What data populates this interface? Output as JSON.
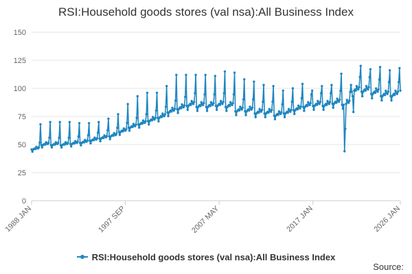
{
  "chart_data": {
    "type": "line",
    "title": "RSI:Household goods stores (val nsa):All Business Index",
    "xlabel": "",
    "ylabel": "",
    "ylim": [
      0,
      150
    ],
    "yticks": [
      0,
      25,
      50,
      75,
      100,
      125,
      150
    ],
    "xrange": [
      "1988 JAN",
      "2026 JAN"
    ],
    "xtick_labels": [
      {
        "label": "1988 JAN",
        "date": "1988-01"
      },
      {
        "label": "1997 SEP",
        "date": "1997-09"
      },
      {
        "label": "2007 MAY",
        "date": "2007-05"
      },
      {
        "label": "2017 JAN",
        "date": "2017-01"
      },
      {
        "label": "2026 JAN",
        "date": "2026-01"
      }
    ],
    "grid": "horizontal",
    "legend_position": "bottom",
    "series": [
      {
        "name": "RSI:Household goods stores (val nsa):All Business Index",
        "color": "#1f86c0",
        "frequency": "monthly",
        "annual_base": [
          {
            "year": 1988,
            "value": 47
          },
          {
            "year": 1989,
            "value": 51
          },
          {
            "year": 1990,
            "value": 51
          },
          {
            "year": 1991,
            "value": 51
          },
          {
            "year": 1992,
            "value": 52
          },
          {
            "year": 1993,
            "value": 53
          },
          {
            "year": 1994,
            "value": 55
          },
          {
            "year": 1995,
            "value": 57
          },
          {
            "year": 1996,
            "value": 59
          },
          {
            "year": 1997,
            "value": 63
          },
          {
            "year": 1998,
            "value": 67
          },
          {
            "year": 1999,
            "value": 70
          },
          {
            "year": 2000,
            "value": 73
          },
          {
            "year": 2001,
            "value": 76
          },
          {
            "year": 2002,
            "value": 81
          },
          {
            "year": 2003,
            "value": 84
          },
          {
            "year": 2004,
            "value": 87
          },
          {
            "year": 2005,
            "value": 86
          },
          {
            "year": 2006,
            "value": 86
          },
          {
            "year": 2007,
            "value": 87
          },
          {
            "year": 2008,
            "value": 86
          },
          {
            "year": 2009,
            "value": 82
          },
          {
            "year": 2010,
            "value": 82
          },
          {
            "year": 2011,
            "value": 80
          },
          {
            "year": 2012,
            "value": 80
          },
          {
            "year": 2013,
            "value": 78
          },
          {
            "year": 2014,
            "value": 80
          },
          {
            "year": 2015,
            "value": 83
          },
          {
            "year": 2016,
            "value": 86
          },
          {
            "year": 2017,
            "value": 87
          },
          {
            "year": 2018,
            "value": 87
          },
          {
            "year": 2019,
            "value": 89
          },
          {
            "year": 2020,
            "value": 88
          },
          {
            "year": 2021,
            "value": 100
          },
          {
            "year": 2022,
            "value": 100
          },
          {
            "year": 2023,
            "value": 98
          },
          {
            "year": 2024,
            "value": 96
          },
          {
            "year": 2025,
            "value": 96
          },
          {
            "year": 2026,
            "value": 97
          }
        ],
        "annual_december_peak": [
          {
            "year": 1988,
            "value": 68
          },
          {
            "year": 1989,
            "value": 70
          },
          {
            "year": 1990,
            "value": 70
          },
          {
            "year": 1991,
            "value": 70
          },
          {
            "year": 1992,
            "value": 69
          },
          {
            "year": 1993,
            "value": 69
          },
          {
            "year": 1994,
            "value": 70
          },
          {
            "year": 1995,
            "value": 73
          },
          {
            "year": 1996,
            "value": 77
          },
          {
            "year": 1997,
            "value": 86
          },
          {
            "year": 1998,
            "value": 93
          },
          {
            "year": 1999,
            "value": 96
          },
          {
            "year": 2000,
            "value": 96
          },
          {
            "year": 2001,
            "value": 102
          },
          {
            "year": 2002,
            "value": 112
          },
          {
            "year": 2003,
            "value": 112
          },
          {
            "year": 2004,
            "value": 112
          },
          {
            "year": 2005,
            "value": 112
          },
          {
            "year": 2006,
            "value": 111
          },
          {
            "year": 2007,
            "value": 115
          },
          {
            "year": 2008,
            "value": 114
          },
          {
            "year": 2009,
            "value": 108
          },
          {
            "year": 2010,
            "value": 106
          },
          {
            "year": 2011,
            "value": 103
          },
          {
            "year": 2012,
            "value": 102
          },
          {
            "year": 2013,
            "value": 98
          },
          {
            "year": 2014,
            "value": 100
          },
          {
            "year": 2015,
            "value": 104
          },
          {
            "year": 2016,
            "value": 98
          },
          {
            "year": 2017,
            "value": 102
          },
          {
            "year": 2018,
            "value": 103
          },
          {
            "year": 2019,
            "value": 113
          },
          {
            "year": 2020,
            "value": 103
          },
          {
            "year": 2021,
            "value": 120
          },
          {
            "year": 2022,
            "value": 117
          },
          {
            "year": 2023,
            "value": 119
          },
          {
            "year": 2024,
            "value": 116
          },
          {
            "year": 2025,
            "value": 118
          }
        ],
        "notable_points": [
          {
            "date": "2020-04",
            "value": 44
          },
          {
            "date": "2020-05",
            "value": 64
          },
          {
            "date": "2021-03",
            "value": 79
          },
          {
            "date": "2021-12",
            "value": 120
          },
          {
            "date": "2026-01",
            "value": 98
          }
        ]
      }
    ]
  },
  "footer": {
    "source_label": "Source:"
  }
}
